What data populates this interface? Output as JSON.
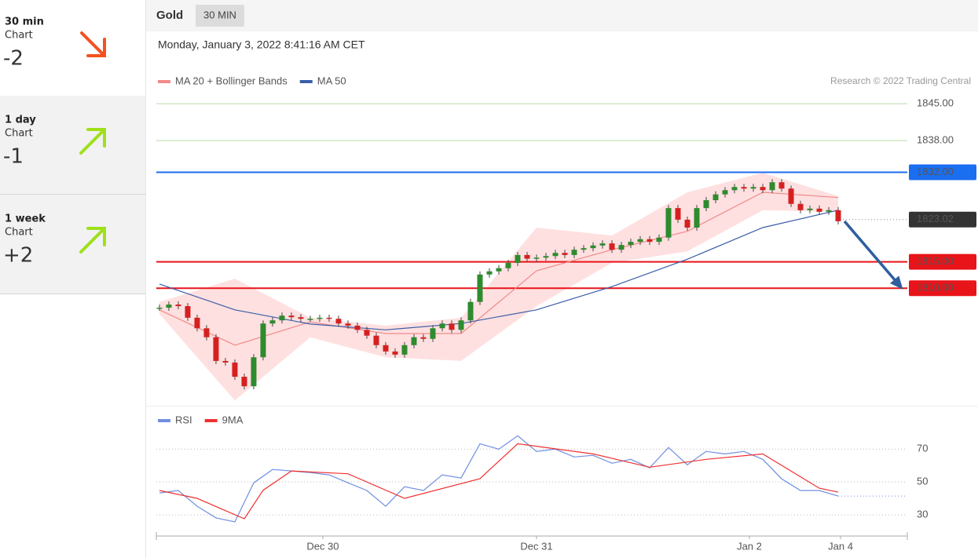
{
  "sidebar": [
    {
      "period": "30 min",
      "kind": "Chart",
      "score": "-2"
    },
    {
      "period": "1 day",
      "kind": "Chart",
      "score": "-1"
    },
    {
      "period": "1 week",
      "kind": "Chart",
      "score": "+2"
    }
  ],
  "header": {
    "instrument": "Gold",
    "interval": "30 MIN",
    "timestamp": "Monday, January 3, 2022 8:41:16 AM CET"
  },
  "chart_data": [
    {
      "type": "candlestick",
      "credit": "Research © 2022 Trading Central",
      "color_up": "#2e8b2e",
      "color_down": "#d62020",
      "xlim": [
        -0.33,
        79.33
      ],
      "ylim": [
        1788,
        1848
      ],
      "x": [
        0,
        1,
        2,
        3,
        4,
        5,
        6,
        7,
        8,
        9,
        10,
        11,
        12,
        13,
        14,
        15,
        16,
        17,
        18,
        19,
        20,
        21,
        22,
        23,
        24,
        25,
        26,
        27,
        28,
        29,
        30,
        31,
        32,
        33,
        34,
        35,
        36,
        37,
        38,
        39,
        40,
        41,
        42,
        43,
        44,
        45,
        46,
        47,
        48,
        49,
        50,
        51,
        52,
        53,
        54,
        55,
        56,
        57,
        58,
        59,
        60,
        61,
        62,
        63,
        64,
        65,
        66,
        67,
        68,
        69,
        70,
        71,
        72
      ],
      "values": [
        1806.3,
        1806.9,
        1806.6,
        1804.4,
        1802.4,
        1800.7,
        1796.2,
        1795.9,
        1793.2,
        1791.4,
        1796.9,
        1803.3,
        1803.9,
        1804.8,
        1804.5,
        1804.2,
        1804.2,
        1804.4,
        1804.2,
        1803.3,
        1802.9,
        1802.1,
        1801.0,
        1799.2,
        1798.0,
        1797.4,
        1799.2,
        1800.7,
        1800.4,
        1802.4,
        1803.3,
        1802.1,
        1803.9,
        1807.4,
        1812.6,
        1813.2,
        1813.8,
        1814.8,
        1816.3,
        1815.6,
        1815.8,
        1816.1,
        1816.7,
        1816.3,
        1817.3,
        1817.6,
        1818.1,
        1818.5,
        1817.3,
        1818.2,
        1818.8,
        1819.3,
        1818.8,
        1819.6,
        1825.2,
        1823.0,
        1821.5,
        1825.2,
        1826.7,
        1827.8,
        1828.6,
        1829.2,
        1828.9,
        1829.2,
        1828.6,
        1830.1,
        1828.9,
        1826.0,
        1824.8,
        1825.1,
        1824.5,
        1824.8,
        1822.7
      ],
      "band": {
        "color": "#ffd6d6",
        "x": [
          0,
          8,
          16,
          24,
          32,
          40,
          48,
          56,
          64,
          72
        ],
        "upper": [
          1807.4,
          1811.8,
          1804.4,
          1802.9,
          1804.4,
          1821.5,
          1820.0,
          1828.2,
          1831.9,
          1827.5
        ],
        "lower": [
          1805.1,
          1788.7,
          1800.7,
          1796.9,
          1796.2,
          1806.6,
          1814.8,
          1817.0,
          1824.8,
          1824.5
        ]
      },
      "series": [
        {
          "name": "MA 20 + Bollinger Bands",
          "color": "#f08a8a",
          "x": [
            0,
            8,
            16,
            24,
            32,
            40,
            48,
            56,
            64,
            72
          ],
          "values": [
            1805.9,
            1799.2,
            1803.6,
            1801.4,
            1801.4,
            1813.3,
            1817.3,
            1820.8,
            1828.2,
            1827.2
          ]
        },
        {
          "name": "MA 50",
          "color": "#3a5ea8",
          "x": [
            0,
            8,
            16,
            24,
            32,
            40,
            48,
            56,
            64,
            72
          ],
          "values": [
            1810.8,
            1805.9,
            1803.2,
            1802.1,
            1803.3,
            1805.9,
            1810.3,
            1815.5,
            1821.5,
            1824.8
          ]
        }
      ],
      "levels": [
        {
          "value": 1845,
          "label": "1845.00",
          "color": "#5aa02c",
          "line": "#b8dba6",
          "boxed": false
        },
        {
          "value": 1838,
          "label": "1838.00",
          "color": "#5aa02c",
          "line": "#b8dba6",
          "boxed": false
        },
        {
          "value": 1832,
          "label": "1832.00",
          "color": "#1a6ef0",
          "line": "#1a6ef0",
          "boxed": true
        },
        {
          "value": 1823.02,
          "label": "1823.02",
          "color": "#333333",
          "line": "dotted",
          "boxed": true
        },
        {
          "value": 1815,
          "label": "1815.00",
          "color": "#e8141a",
          "line": "#e8141a",
          "boxed": true
        },
        {
          "value": 1810,
          "label": "1810.00",
          "color": "#e8141a",
          "line": "#e8141a",
          "boxed": true
        }
      ]
    },
    {
      "type": "line",
      "xlim": [
        -0.33,
        79.33
      ],
      "ylim": [
        18.5,
        95
      ],
      "yticks": [
        30,
        50,
        70
      ],
      "grid": true,
      "xticks": [
        {
          "value": 17.33,
          "label": "Dec 30"
        },
        {
          "value": 40,
          "label": "Dec 31"
        },
        {
          "value": 62.58,
          "label": "Jan 2"
        },
        {
          "value": 72.25,
          "label": "Jan 4"
        }
      ],
      "series": [
        {
          "name": "RSI",
          "color": "#6f8fe0",
          "x": [
            0,
            2,
            4,
            6,
            8,
            10,
            12,
            14,
            16,
            18,
            20,
            22,
            24,
            26,
            28,
            30,
            32,
            34,
            36,
            38,
            40,
            42,
            44,
            46,
            48,
            50,
            52,
            54,
            56,
            58,
            60,
            62,
            64,
            66,
            68,
            70,
            72
          ],
          "values": [
            43.3,
            44.8,
            35.2,
            28.1,
            25.7,
            49.5,
            57.6,
            56.7,
            55.7,
            54.3,
            49.5,
            44.8,
            35.2,
            47.1,
            44.8,
            54.3,
            52.4,
            73.3,
            70,
            78.1,
            68.6,
            70,
            65.2,
            66.2,
            61.4,
            63.8,
            58.6,
            71,
            60.5,
            68.6,
            67.1,
            68.6,
            63.8,
            51.9,
            44.8,
            44.8,
            41.4
          ]
        },
        {
          "name": "9MA",
          "color": "#f03030",
          "x": [
            0,
            4,
            9,
            11,
            14,
            20,
            26,
            34,
            38,
            46,
            52,
            58,
            64,
            70,
            72
          ],
          "values": [
            44.8,
            40,
            27.6,
            45,
            56.7,
            55,
            40,
            52,
            73.3,
            67.1,
            59,
            63.8,
            67.1,
            46.2,
            43.8
          ]
        }
      ]
    }
  ]
}
